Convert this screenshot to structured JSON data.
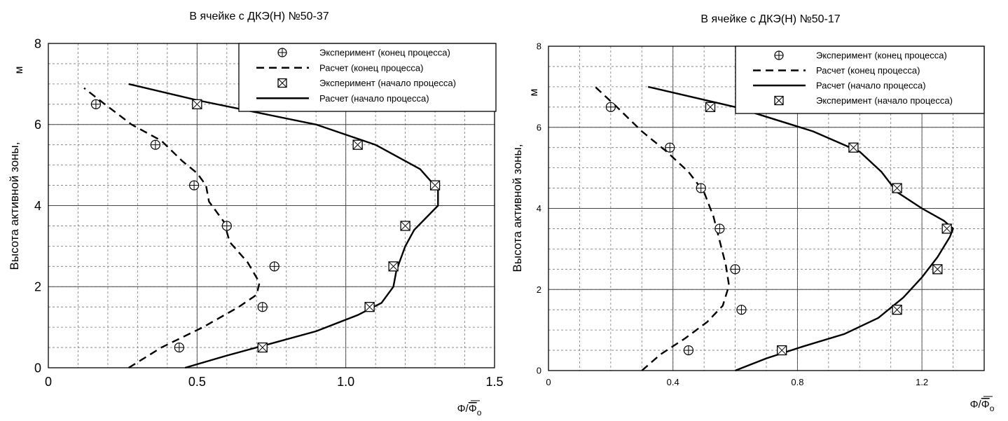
{
  "chart_data": [
    {
      "type": "line",
      "title": "В ячейке с ДКЭ(Н) №50-37",
      "ylabel": "Высота активной зоны, м",
      "xlabel": "Φ/Φ̄",
      "xlabel_sub": "o",
      "xlim": [
        0,
        1.5
      ],
      "ylim": [
        0,
        8
      ],
      "xticks": [
        0,
        0.5,
        1.0,
        1.5
      ],
      "xtick_labels": [
        "0",
        "0.5",
        "1.0",
        "1.5"
      ],
      "yticks": [
        0,
        2,
        4,
        6,
        8
      ],
      "ytick_labels": [
        "0",
        "2",
        "4",
        "6",
        "8"
      ],
      "grid": true,
      "legend_position": "top-right",
      "legend": [
        {
          "label": "Эксперимент (конец процесса)",
          "kind": "circle"
        },
        {
          "label": "Расчет (конец процесса)",
          "kind": "dashed"
        },
        {
          "label": "Эксперимент (начало процесса)",
          "kind": "square"
        },
        {
          "label": "Расчет (начало процесса)",
          "kind": "solid"
        }
      ],
      "series": [
        {
          "name": "Эксперимент (конец процесса)",
          "style": "circle",
          "x": [
            0.44,
            0.72,
            0.76,
            0.6,
            0.49,
            0.36,
            0.16
          ],
          "y": [
            0.5,
            1.5,
            2.5,
            3.5,
            4.5,
            5.5,
            6.5
          ]
        },
        {
          "name": "Расчет (конец процесса)",
          "style": "dashed",
          "x": [
            0.27,
            0.38,
            0.52,
            0.64,
            0.7,
            0.71,
            0.67,
            0.61,
            0.59,
            0.54,
            0.53,
            0.5,
            0.45,
            0.38,
            0.28,
            0.19,
            0.12
          ],
          "y": [
            0.0,
            0.5,
            1.0,
            1.5,
            1.8,
            2.1,
            2.6,
            3.1,
            3.6,
            4.1,
            4.5,
            4.8,
            5.1,
            5.6,
            6.0,
            6.5,
            6.9
          ]
        },
        {
          "name": "Эксперимент (начало процесса)",
          "style": "square",
          "x": [
            0.72,
            1.08,
            1.16,
            1.2,
            1.3,
            1.04,
            0.5
          ],
          "y": [
            0.5,
            1.5,
            2.5,
            3.5,
            4.5,
            5.5,
            6.5
          ]
        },
        {
          "name": "Расчет (начало процесса)",
          "style": "solid",
          "x": [
            0.46,
            0.6,
            0.75,
            0.9,
            1.04,
            1.12,
            1.16,
            1.17,
            1.2,
            1.23,
            1.27,
            1.31,
            1.31,
            1.25,
            1.1,
            0.9,
            0.7,
            0.5,
            0.27
          ],
          "y": [
            0.0,
            0.3,
            0.6,
            0.9,
            1.3,
            1.6,
            2.0,
            2.4,
            3.0,
            3.4,
            3.7,
            4.0,
            4.4,
            4.9,
            5.5,
            6.0,
            6.3,
            6.6,
            7.0
          ]
        }
      ]
    },
    {
      "type": "line",
      "title": "В ячейке с ДКЭ(Н) №50-17",
      "ylabel": "Высота активной зоны, м",
      "xlabel": "Φ/Φ̄",
      "xlabel_sub": "o",
      "xlim": [
        0,
        1.4
      ],
      "ylim": [
        0,
        8
      ],
      "xticks": [
        0,
        0.4,
        0.8,
        1.2
      ],
      "xtick_labels": [
        "0",
        "0.4",
        "0.8",
        "1.2"
      ],
      "yticks": [
        0,
        2,
        4,
        6,
        8
      ],
      "ytick_labels": [
        "0",
        "2",
        "4",
        "6",
        "8"
      ],
      "grid": true,
      "legend_position": "top-right",
      "legend": [
        {
          "label": "Эксперимент (конец процесса)",
          "kind": "circle"
        },
        {
          "label": "Расчет (конец процесса)",
          "kind": "dashed"
        },
        {
          "label": "Расчет (начало процесса)",
          "kind": "solid"
        },
        {
          "label": "Эксперимент (начало процесса)",
          "kind": "square"
        }
      ],
      "series": [
        {
          "name": "Эксперимент (конец процесса)",
          "style": "circle",
          "x": [
            0.45,
            0.62,
            0.6,
            0.55,
            0.49,
            0.39,
            0.2
          ],
          "y": [
            0.5,
            1.5,
            2.5,
            3.5,
            4.5,
            5.5,
            6.5
          ]
        },
        {
          "name": "Расчет (конец процесса)",
          "style": "dashed",
          "x": [
            0.3,
            0.36,
            0.44,
            0.51,
            0.56,
            0.58,
            0.57,
            0.55,
            0.53,
            0.5,
            0.45,
            0.38,
            0.3,
            0.22,
            0.15
          ],
          "y": [
            0.0,
            0.4,
            0.8,
            1.2,
            1.6,
            2.1,
            2.6,
            3.2,
            3.8,
            4.4,
            4.9,
            5.4,
            5.9,
            6.5,
            7.0
          ]
        },
        {
          "name": "Эксперимент (начало процесса)",
          "style": "square",
          "x": [
            0.75,
            1.12,
            1.25,
            1.28,
            1.12,
            0.98,
            0.52
          ],
          "y": [
            0.5,
            1.5,
            2.5,
            3.5,
            4.5,
            5.5,
            6.5
          ]
        },
        {
          "name": "Расчет (начало процесса)",
          "style": "solid",
          "x": [
            0.6,
            0.7,
            0.82,
            0.95,
            1.06,
            1.14,
            1.2,
            1.25,
            1.29,
            1.3,
            1.27,
            1.2,
            1.12,
            1.07,
            1.0,
            0.85,
            0.6,
            0.32
          ],
          "y": [
            0.0,
            0.3,
            0.6,
            0.9,
            1.3,
            1.8,
            2.3,
            2.8,
            3.3,
            3.5,
            3.7,
            4.0,
            4.4,
            4.9,
            5.4,
            5.9,
            6.5,
            7.0
          ]
        }
      ]
    }
  ]
}
